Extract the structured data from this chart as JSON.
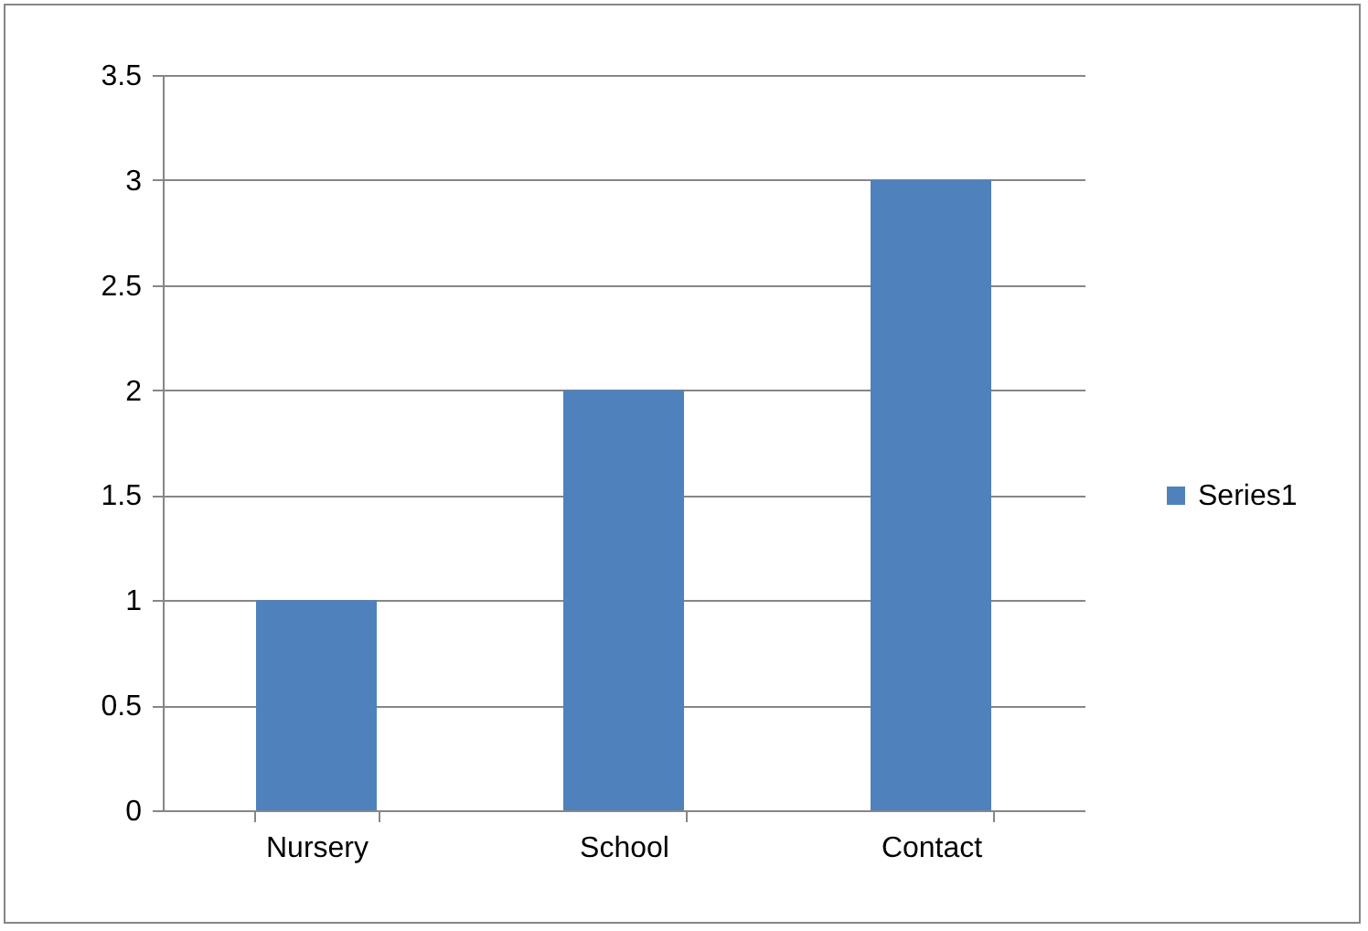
{
  "chart_data": {
    "type": "bar",
    "categories": [
      "Nursery",
      "School",
      "Contact"
    ],
    "series": [
      {
        "name": "Series1",
        "color": "#4f81bd",
        "values": [
          1,
          2,
          3
        ]
      }
    ],
    "ylim": [
      0,
      3.5
    ],
    "yticks": [
      0,
      0.5,
      1,
      1.5,
      2,
      2.5,
      3,
      3.5
    ],
    "grid": "y",
    "legend": "right"
  }
}
